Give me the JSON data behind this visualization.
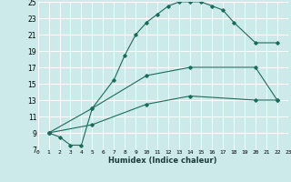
{
  "xlabel": "Humidex (Indice chaleur)",
  "bg_color": "#cceaea",
  "grid_color": "#ffffff",
  "line_color": "#1a6b5a",
  "xlim": [
    0,
    23
  ],
  "ylim": [
    7,
    25
  ],
  "xticks": [
    0,
    1,
    2,
    3,
    4,
    5,
    6,
    7,
    8,
    9,
    10,
    11,
    12,
    13,
    14,
    15,
    16,
    17,
    18,
    19,
    20,
    21,
    22,
    23
  ],
  "yticks": [
    7,
    9,
    11,
    13,
    15,
    17,
    19,
    21,
    23,
    25
  ],
  "curve1_x": [
    1,
    2,
    3,
    4,
    5,
    7,
    8,
    9,
    10,
    11,
    12,
    13,
    14,
    15,
    16,
    17,
    18,
    20,
    22
  ],
  "curve1_y": [
    9,
    8.5,
    7.5,
    7.5,
    12,
    15.5,
    18.5,
    21,
    22.5,
    23.5,
    24.5,
    25,
    25,
    25,
    24.5,
    24,
    22.5,
    20,
    20
  ],
  "curve2_x": [
    1,
    5,
    10,
    14,
    20,
    22
  ],
  "curve2_y": [
    9,
    12,
    16,
    17,
    17,
    13
  ],
  "curve3_x": [
    1,
    5,
    10,
    14,
    20,
    22
  ],
  "curve3_y": [
    9,
    10,
    12.5,
    13.5,
    13,
    13
  ]
}
